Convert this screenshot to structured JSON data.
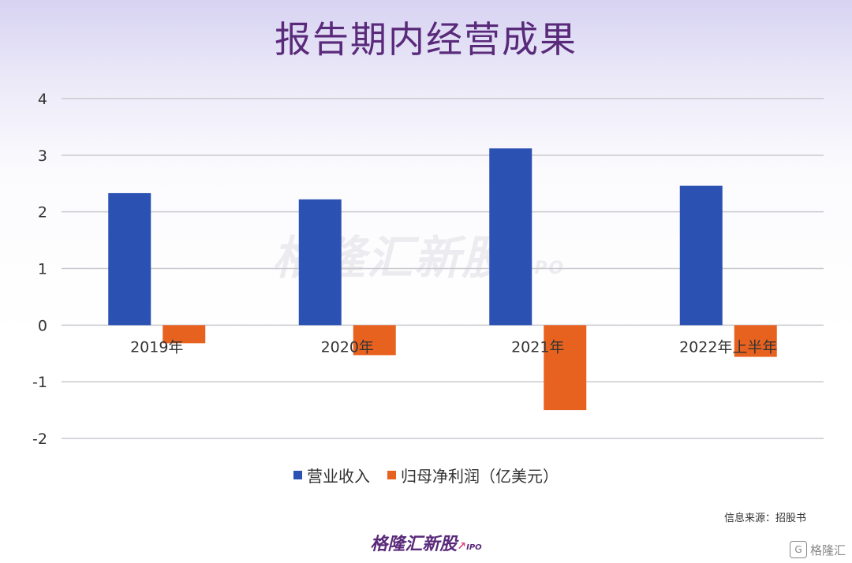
{
  "title": "报告期内经营成果",
  "watermark": {
    "text": "格隆汇新股",
    "sub": "IPO"
  },
  "source": "信息来源：招股书",
  "brand": {
    "text": "格隆汇新股",
    "sub": "IPO"
  },
  "corner": {
    "logo": "G",
    "text": "格隆汇"
  },
  "colors": {
    "revenue": "#2b51b3",
    "profit": "#e8621f",
    "title": "#5a2a7a"
  },
  "chart_data": {
    "type": "bar",
    "categories": [
      "2019年",
      "2020年",
      "2021年",
      "2022年上半年"
    ],
    "series": [
      {
        "name": "营业收入",
        "values": [
          2.33,
          2.22,
          3.12,
          2.46
        ]
      },
      {
        "name": "归母净利润（亿美元）",
        "values": [
          -0.32,
          -0.53,
          -1.5,
          -0.56
        ]
      }
    ],
    "yticks": [
      "-2",
      "-1",
      "0",
      "1",
      "2",
      "3",
      "4"
    ],
    "ylim": [
      -2,
      4
    ],
    "grid": true,
    "legend_position": "bottom"
  }
}
